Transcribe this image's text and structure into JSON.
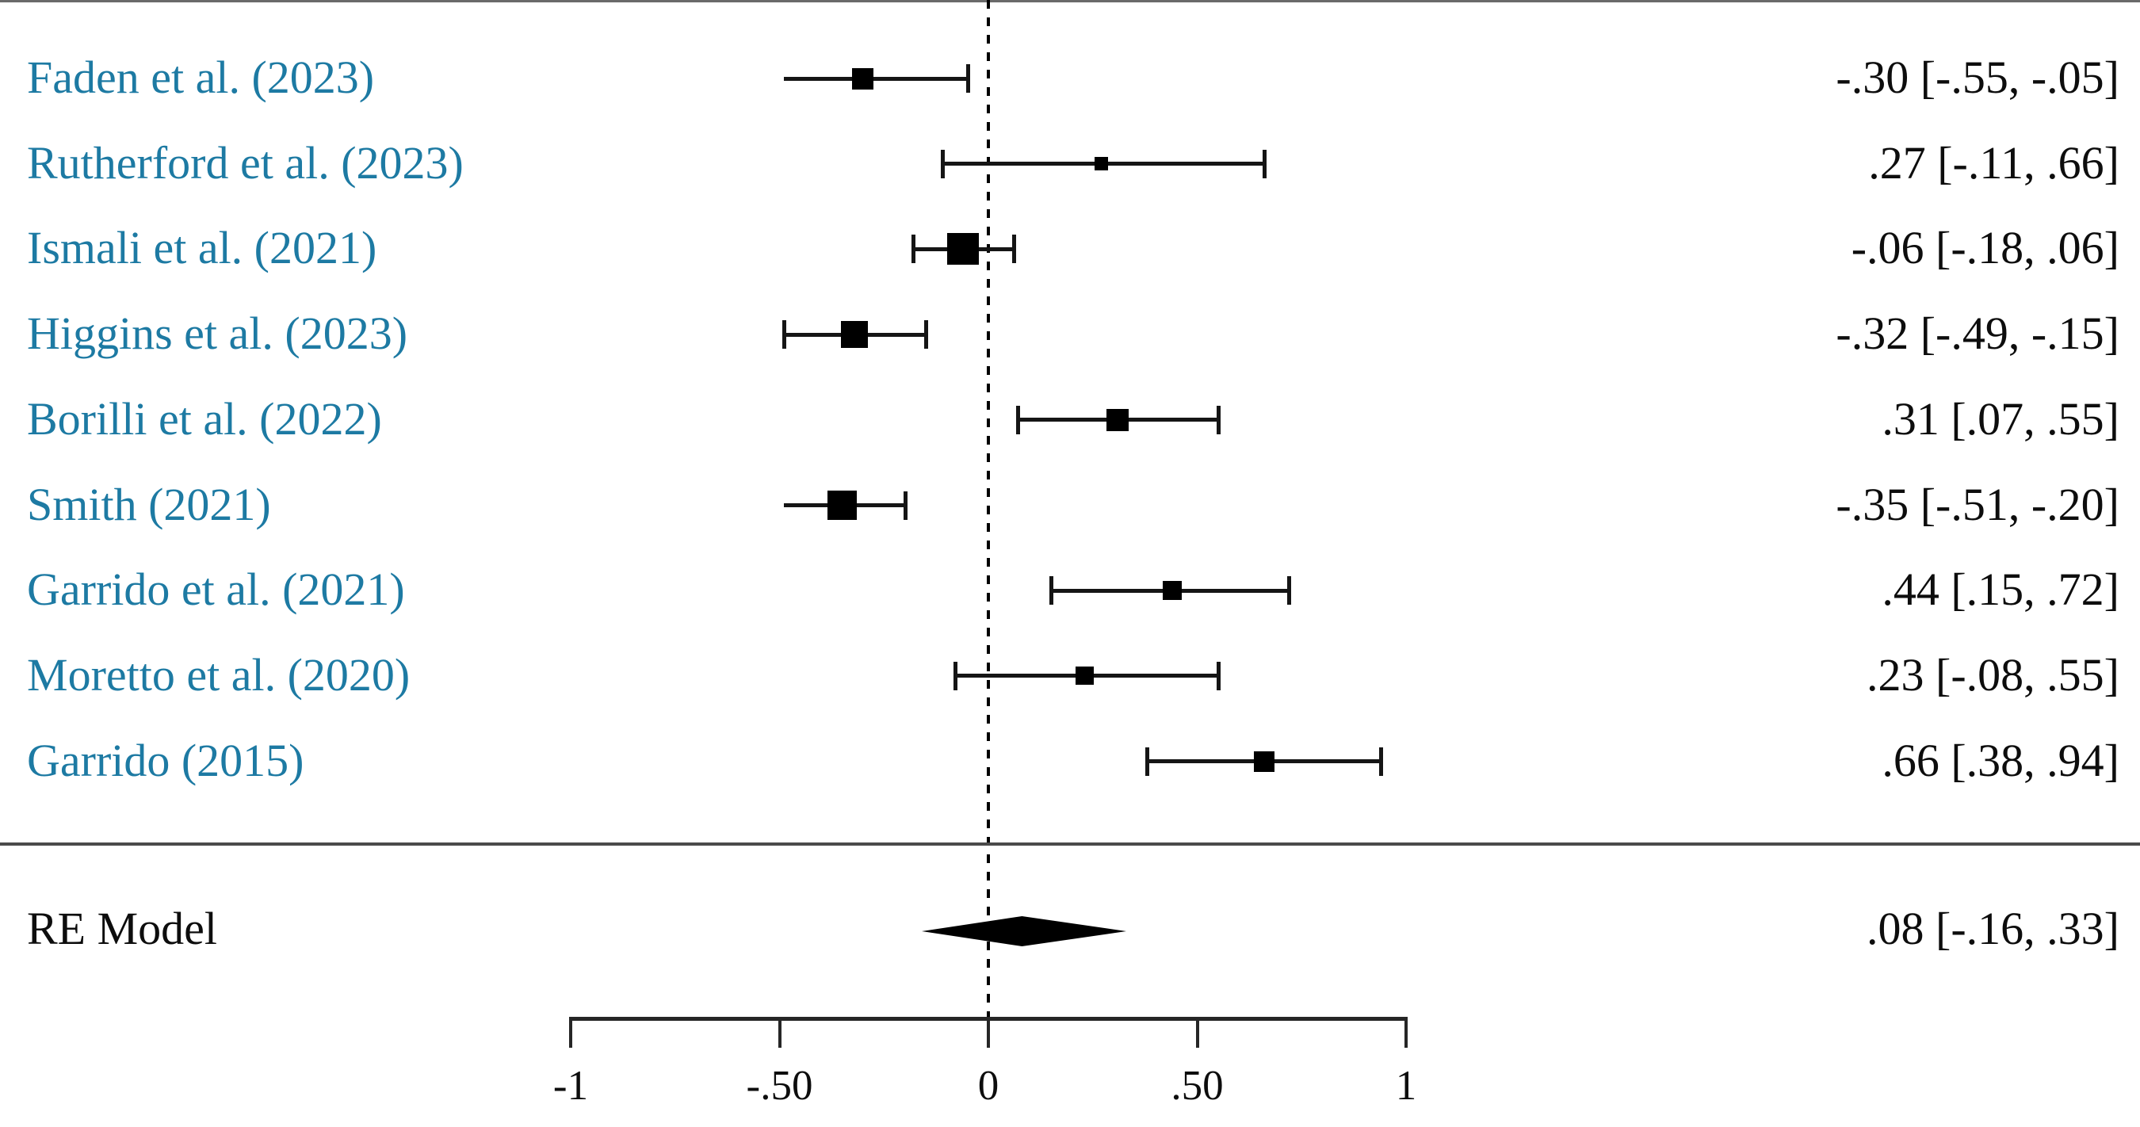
{
  "chart_data": {
    "type": "forest",
    "description": "Random-effects meta-analysis forest plot of 9 studies with effect sizes and 95% confidence intervals",
    "colors": {
      "study_label": "#1d7aa3",
      "ink": "#0d0d0d",
      "marker": "#000000"
    },
    "studies": [
      {
        "label": "Faden et al. (2023)",
        "estimate": -0.3,
        "ci_lower": -0.55,
        "ci_upper": -0.05,
        "value_text": "-.30 [-.55, -.05]",
        "marker_size": 27,
        "drawn_ci_lower": -0.49,
        "left_cap": false
      },
      {
        "label": "Rutherford et al. (2023)",
        "estimate": 0.27,
        "ci_lower": -0.11,
        "ci_upper": 0.66,
        "value_text": ".27 [-.11, .66]",
        "marker_size": 17,
        "left_cap": true
      },
      {
        "label": "Ismali et al. (2021)",
        "estimate": -0.06,
        "ci_lower": -0.18,
        "ci_upper": 0.06,
        "value_text": "-.06 [-.18, .06]",
        "marker_size": 40,
        "left_cap": true
      },
      {
        "label": "Higgins et al. (2023)",
        "estimate": -0.32,
        "ci_lower": -0.49,
        "ci_upper": -0.15,
        "value_text": "-.32 [-.49, -.15]",
        "marker_size": 34,
        "left_cap": true
      },
      {
        "label": "Borilli et al. (2022)",
        "estimate": 0.31,
        "ci_lower": 0.07,
        "ci_upper": 0.55,
        "value_text": ".31 [.07, .55]",
        "marker_size": 28,
        "left_cap": true
      },
      {
        "label": "Smith (2021)",
        "estimate": -0.35,
        "ci_lower": -0.51,
        "ci_upper": -0.2,
        "value_text": "-.35 [-.51, -.20]",
        "marker_size": 37,
        "drawn_ci_lower": -0.49,
        "left_cap": false
      },
      {
        "label": "Garrido et al. (2021)",
        "estimate": 0.44,
        "ci_lower": 0.15,
        "ci_upper": 0.72,
        "value_text": ".44 [.15, .72]",
        "marker_size": 24,
        "left_cap": true
      },
      {
        "label": "Moretto et al. (2020)",
        "estimate": 0.23,
        "ci_lower": -0.08,
        "ci_upper": 0.55,
        "value_text": ".23 [-.08, .55]",
        "marker_size": 23,
        "left_cap": true
      },
      {
        "label": "Garrido (2015)",
        "estimate": 0.66,
        "ci_lower": 0.38,
        "ci_upper": 0.94,
        "value_text": ".66 [.38, .94]",
        "marker_size": 26,
        "left_cap": true
      }
    ],
    "summary": {
      "label": "RE Model",
      "estimate": 0.08,
      "ci_lower": -0.16,
      "ci_upper": 0.33,
      "value_text": ".08 [-.16, .33]"
    },
    "axis": {
      "range": [
        -1,
        1
      ],
      "zero_reference_line": 0,
      "tick_values": [
        -1,
        -0.5,
        0,
        0.5,
        1
      ],
      "tick_labels": [
        "-1",
        "-.50",
        "0",
        ".50",
        "1"
      ]
    }
  }
}
